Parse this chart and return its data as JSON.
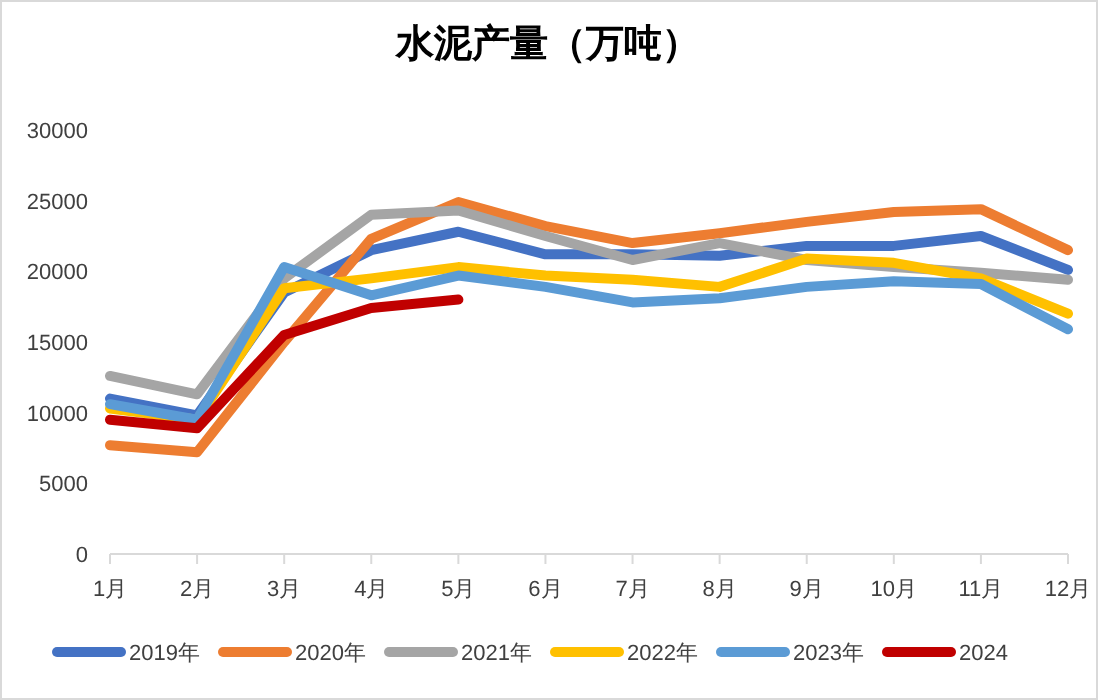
{
  "chart_data": {
    "type": "line",
    "title": "水泥产量（万吨）",
    "categories": [
      "1月",
      "2月",
      "3月",
      "4月",
      "5月",
      "6月",
      "7月",
      "8月",
      "9月",
      "10月",
      "11月",
      "12月"
    ],
    "series": [
      {
        "name": "2019年",
        "color": "#4472c4",
        "values": [
          11000,
          9800,
          18500,
          21500,
          22800,
          21200,
          21200,
          21100,
          21800,
          21800,
          22500,
          20100
        ]
      },
      {
        "name": "2020年",
        "color": "#ed7d31",
        "values": [
          7700,
          7200,
          15000,
          22300,
          24900,
          23200,
          22000,
          22700,
          23500,
          24200,
          24400,
          21500
        ]
      },
      {
        "name": "2021年",
        "color": "#a5a5a5",
        "values": [
          12600,
          11300,
          19500,
          24000,
          24300,
          22500,
          20800,
          22000,
          20800,
          20300,
          19900,
          19400
        ]
      },
      {
        "name": "2022年",
        "color": "#ffc000",
        "values": [
          10300,
          9500,
          18800,
          19500,
          20300,
          19700,
          19400,
          18900,
          20900,
          20600,
          19500,
          17000
        ]
      },
      {
        "name": "2023年",
        "color": "#5b9bd5",
        "values": [
          10600,
          9500,
          20300,
          18300,
          19700,
          18900,
          17800,
          18100,
          18900,
          19300,
          19100,
          15900
        ]
      },
      {
        "name": "2024",
        "color": "#c00000",
        "values": [
          9500,
          8900,
          15500,
          17400,
          18000,
          null,
          null,
          null,
          null,
          null,
          null,
          null
        ]
      }
    ],
    "ylim": [
      0,
      30000
    ],
    "yticks": [
      0,
      5000,
      10000,
      15000,
      20000,
      25000,
      30000
    ],
    "grid": false,
    "legend": "bottom",
    "marker": "none",
    "line_style": "solid"
  }
}
